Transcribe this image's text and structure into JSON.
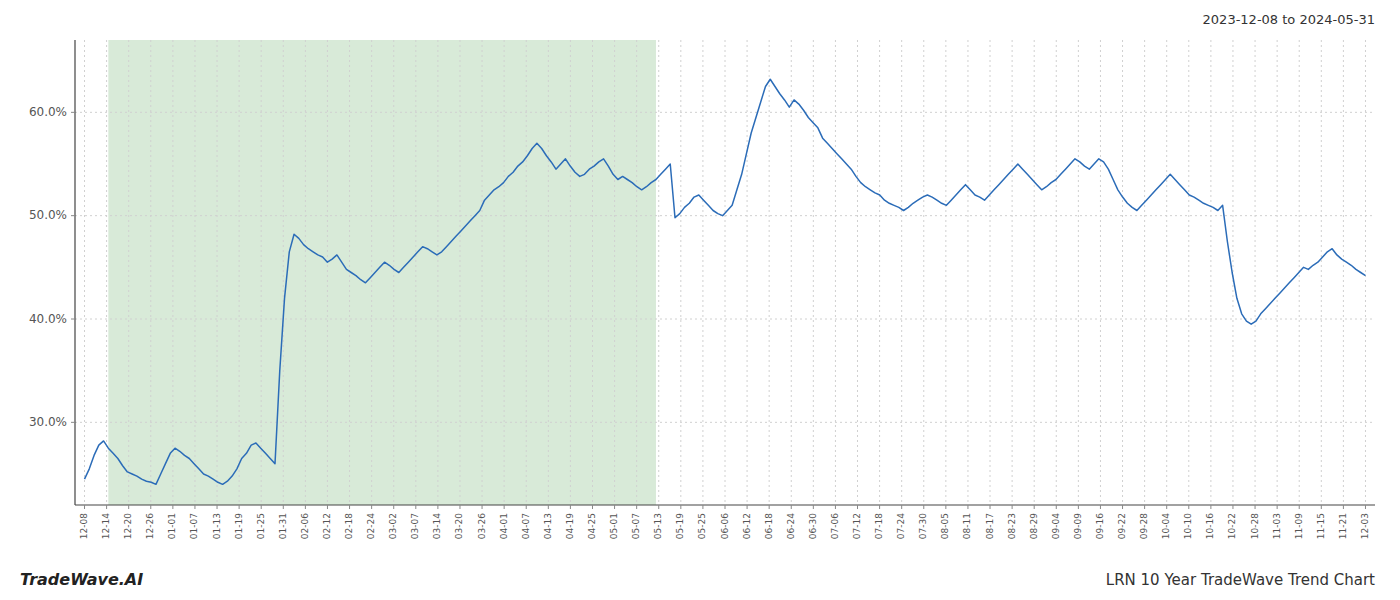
{
  "chart_data": {
    "type": "line",
    "title": "LRN 10 Year TradeWave Trend Chart",
    "subtitle": "2023-12-08 to 2024-05-31",
    "annotations": [
      "TradeWave.AI"
    ],
    "color": "#2b6cb8",
    "grid": true,
    "xlim": [
      -2,
      271
    ],
    "ylim": [
      22.0,
      67.0
    ],
    "yticks": [
      {
        "value": 30.0,
        "label": "30.0%"
      },
      {
        "value": 40.0,
        "label": "40.0%"
      },
      {
        "value": 50.0,
        "label": "50.0%"
      },
      {
        "value": 60.0,
        "label": "60.0%"
      }
    ],
    "highlight": {
      "start": 5,
      "end": 120,
      "color": "#d8ead8"
    },
    "x_tick_labels": [
      "12-08",
      "12-14",
      "12-20",
      "12-26",
      "01-01",
      "01-07",
      "01-13",
      "01-19",
      "01-25",
      "01-31",
      "02-06",
      "02-12",
      "02-18",
      "02-24",
      "03-02",
      "03-07",
      "03-14",
      "03-20",
      "03-26",
      "04-01",
      "04-07",
      "04-13",
      "04-19",
      "04-25",
      "05-01",
      "05-07",
      "05-13",
      "05-19",
      "05-25",
      "06-06",
      "06-12",
      "06-18",
      "06-24",
      "06-30",
      "07-06",
      "07-12",
      "07-18",
      "07-24",
      "07-30",
      "08-05",
      "08-11",
      "08-17",
      "08-23",
      "08-29",
      "09-04",
      "09-09",
      "09-16",
      "09-22",
      "09-28",
      "10-04",
      "10-10",
      "10-16",
      "10-22",
      "10-28",
      "11-03",
      "11-09",
      "11-15",
      "11-21",
      "12-03"
    ],
    "values": [
      24.5,
      25.5,
      26.8,
      27.8,
      28.2,
      27.5,
      27.0,
      26.5,
      25.8,
      25.2,
      25.0,
      24.8,
      24.5,
      24.3,
      24.2,
      24.0,
      25.0,
      26.0,
      27.0,
      27.5,
      27.2,
      26.8,
      26.5,
      26.0,
      25.5,
      25.0,
      24.8,
      24.5,
      24.2,
      24.0,
      24.3,
      24.8,
      25.5,
      26.5,
      27.0,
      27.8,
      28.0,
      27.5,
      27.0,
      26.5,
      26.0,
      35.0,
      42.0,
      46.5,
      48.2,
      47.8,
      47.2,
      46.8,
      46.5,
      46.2,
      46.0,
      45.5,
      45.8,
      46.2,
      45.5,
      44.8,
      44.5,
      44.2,
      43.8,
      43.5,
      44.0,
      44.5,
      45.0,
      45.5,
      45.2,
      44.8,
      44.5,
      45.0,
      45.5,
      46.0,
      46.5,
      47.0,
      46.8,
      46.5,
      46.2,
      46.5,
      47.0,
      47.5,
      48.0,
      48.5,
      49.0,
      49.5,
      50.0,
      50.5,
      51.5,
      52.0,
      52.5,
      52.8,
      53.2,
      53.8,
      54.2,
      54.8,
      55.2,
      55.8,
      56.5,
      57.0,
      56.5,
      55.8,
      55.2,
      54.5,
      55.0,
      55.5,
      54.8,
      54.2,
      53.8,
      54.0,
      54.5,
      54.8,
      55.2,
      55.5,
      54.8,
      54.0,
      53.5,
      53.8,
      53.5,
      53.2,
      52.8,
      52.5,
      52.8,
      53.2,
      53.5,
      54.0,
      54.5,
      55.0,
      49.8,
      50.2,
      50.8,
      51.2,
      51.8,
      52.0,
      51.5,
      51.0,
      50.5,
      50.2,
      50.0,
      50.5,
      51.0,
      52.5,
      54.0,
      56.0,
      58.0,
      59.5,
      61.0,
      62.5,
      63.2,
      62.5,
      61.8,
      61.2,
      60.5,
      61.2,
      60.8,
      60.2,
      59.5,
      59.0,
      58.5,
      57.5,
      57.0,
      56.5,
      56.0,
      55.5,
      55.0,
      54.5,
      53.8,
      53.2,
      52.8,
      52.5,
      52.2,
      52.0,
      51.5,
      51.2,
      51.0,
      50.8,
      50.5,
      50.8,
      51.2,
      51.5,
      51.8,
      52.0,
      51.8,
      51.5,
      51.2,
      51.0,
      51.5,
      52.0,
      52.5,
      53.0,
      52.5,
      52.0,
      51.8,
      51.5,
      52.0,
      52.5,
      53.0,
      53.5,
      54.0,
      54.5,
      55.0,
      54.5,
      54.0,
      53.5,
      53.0,
      52.5,
      52.8,
      53.2,
      53.5,
      54.0,
      54.5,
      55.0,
      55.5,
      55.2,
      54.8,
      54.5,
      55.0,
      55.5,
      55.2,
      54.5,
      53.5,
      52.5,
      51.8,
      51.2,
      50.8,
      50.5,
      51.0,
      51.5,
      52.0,
      52.5,
      53.0,
      53.5,
      54.0,
      53.5,
      53.0,
      52.5,
      52.0,
      51.8,
      51.5,
      51.2,
      51.0,
      50.8,
      50.5,
      51.0,
      47.5,
      44.5,
      42.0,
      40.5,
      39.8,
      39.5,
      39.8,
      40.5,
      41.0,
      41.5,
      42.0,
      42.5,
      43.0,
      43.5,
      44.0,
      44.5,
      45.0,
      44.8,
      45.2,
      45.5,
      46.0,
      46.5,
      46.8,
      46.2,
      45.8,
      45.5,
      45.2,
      44.8,
      44.5,
      44.2
    ]
  }
}
